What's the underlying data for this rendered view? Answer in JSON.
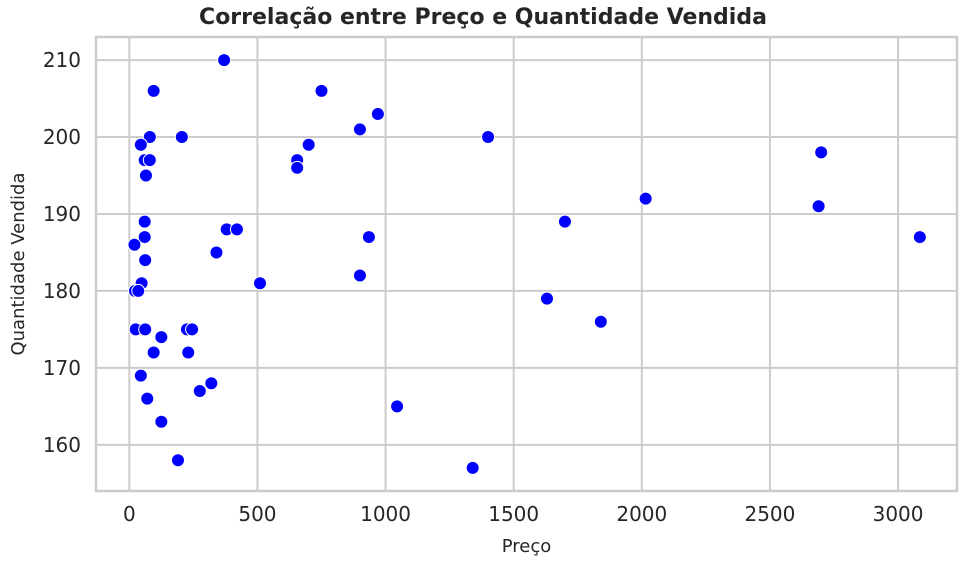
{
  "chart_data": {
    "type": "scatter",
    "title": "Correlação entre Preço e Quantidade Vendida",
    "xlabel": "Preço",
    "ylabel": "Quantidade Vendida",
    "xlim": [
      -130,
      3230
    ],
    "ylim": [
      154,
      213
    ],
    "xticks": [
      0,
      500,
      1000,
      1500,
      2000,
      2500,
      3000
    ],
    "yticks": [
      160,
      170,
      180,
      190,
      200,
      210
    ],
    "grid": true,
    "marker_color": "#0000ff",
    "grid_color": "#cccccc",
    "points": [
      {
        "x": 370,
        "y": 210
      },
      {
        "x": 95,
        "y": 206
      },
      {
        "x": 750,
        "y": 206
      },
      {
        "x": 970,
        "y": 203
      },
      {
        "x": 900,
        "y": 201
      },
      {
        "x": 80,
        "y": 200
      },
      {
        "x": 205,
        "y": 200
      },
      {
        "x": 1400,
        "y": 200
      },
      {
        "x": 45,
        "y": 199
      },
      {
        "x": 700,
        "y": 199
      },
      {
        "x": 2700,
        "y": 198
      },
      {
        "x": 60,
        "y": 197
      },
      {
        "x": 80,
        "y": 197
      },
      {
        "x": 655,
        "y": 197
      },
      {
        "x": 655,
        "y": 196
      },
      {
        "x": 65,
        "y": 195
      },
      {
        "x": 2015,
        "y": 192
      },
      {
        "x": 2690,
        "y": 191
      },
      {
        "x": 60,
        "y": 189
      },
      {
        "x": 1700,
        "y": 189
      },
      {
        "x": 380,
        "y": 188
      },
      {
        "x": 420,
        "y": 188
      },
      {
        "x": 60,
        "y": 187
      },
      {
        "x": 935,
        "y": 187
      },
      {
        "x": 3085,
        "y": 187
      },
      {
        "x": 20,
        "y": 186
      },
      {
        "x": 340,
        "y": 185
      },
      {
        "x": 62,
        "y": 184
      },
      {
        "x": 900,
        "y": 182
      },
      {
        "x": 48,
        "y": 181
      },
      {
        "x": 510,
        "y": 181
      },
      {
        "x": 22,
        "y": 180
      },
      {
        "x": 35,
        "y": 180
      },
      {
        "x": 1630,
        "y": 179
      },
      {
        "x": 1840,
        "y": 176
      },
      {
        "x": 25,
        "y": 175
      },
      {
        "x": 62,
        "y": 175
      },
      {
        "x": 225,
        "y": 175
      },
      {
        "x": 245,
        "y": 175
      },
      {
        "x": 125,
        "y": 174
      },
      {
        "x": 95,
        "y": 172
      },
      {
        "x": 230,
        "y": 172
      },
      {
        "x": 45,
        "y": 169
      },
      {
        "x": 320,
        "y": 168
      },
      {
        "x": 275,
        "y": 167
      },
      {
        "x": 70,
        "y": 166
      },
      {
        "x": 1045,
        "y": 165
      },
      {
        "x": 125,
        "y": 163
      },
      {
        "x": 190,
        "y": 158
      },
      {
        "x": 1340,
        "y": 157
      }
    ]
  }
}
